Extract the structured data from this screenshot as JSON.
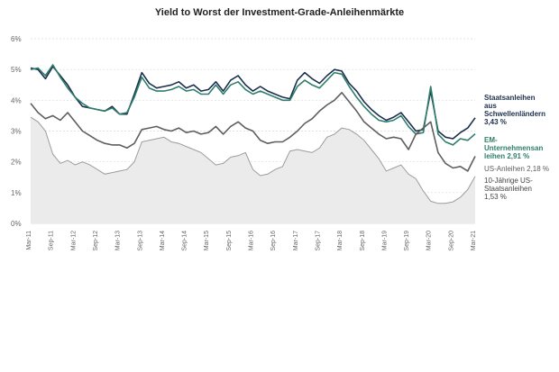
{
  "chart_data": {
    "type": "line",
    "title": "Yield to Worst der Investment-Grade-Anleihenmärkte",
    "ylim": [
      0,
      6
    ],
    "yticks": [
      "0%",
      "1%",
      "2%",
      "3%",
      "4%",
      "5%",
      "6%"
    ],
    "grid": true,
    "legend_placement": "right",
    "x_tick_labels": [
      "Mar-11",
      "Sep-11",
      "Mar-12",
      "Sep-12",
      "Mar-13",
      "Sep-13",
      "Mar-14",
      "Sep-14",
      "Mar-15",
      "Sep-15",
      "Mar-16",
      "Sep-16",
      "Mar-17",
      "Sep-17",
      "Mar-18",
      "Sep-18",
      "Mar-19",
      "Sep-19",
      "Mar-20",
      "Sep-20",
      "Mar-21"
    ],
    "series": [
      {
        "name": "Staatsanleihen aus Schwellenländern 3,43 %",
        "label_lines": [
          "Staatsanleihen",
          "aus",
          "Schwellenländern",
          "3,43 %"
        ],
        "color": "#1b2f4e",
        "style": "line",
        "values": [
          5.05,
          5.0,
          4.7,
          5.1,
          4.8,
          4.5,
          4.1,
          3.8,
          3.75,
          3.7,
          3.65,
          3.8,
          3.55,
          3.55,
          4.2,
          4.9,
          4.55,
          4.4,
          4.45,
          4.5,
          4.6,
          4.4,
          4.5,
          4.3,
          4.35,
          4.6,
          4.3,
          4.65,
          4.8,
          4.5,
          4.3,
          4.45,
          4.3,
          4.2,
          4.1,
          4.05,
          4.65,
          4.9,
          4.7,
          4.55,
          4.8,
          5.0,
          4.95,
          4.55,
          4.3,
          3.95,
          3.7,
          3.5,
          3.35,
          3.45,
          3.6,
          3.3,
          3.0,
          3.05,
          4.3,
          3.0,
          2.8,
          2.75,
          2.95,
          3.1,
          3.43
        ]
      },
      {
        "name": "EM-Unternehmensanleihen 2,91 %",
        "label_lines": [
          "EM-",
          "Unternehmensan",
          "leihen 2,91 %"
        ],
        "color": "#2f7e6b",
        "style": "line",
        "values": [
          5.0,
          5.05,
          4.8,
          5.15,
          4.75,
          4.4,
          4.1,
          3.9,
          3.75,
          3.7,
          3.65,
          3.75,
          3.55,
          3.6,
          4.1,
          4.75,
          4.4,
          4.3,
          4.3,
          4.35,
          4.45,
          4.3,
          4.35,
          4.2,
          4.2,
          4.5,
          4.2,
          4.5,
          4.6,
          4.35,
          4.2,
          4.3,
          4.2,
          4.1,
          4.0,
          4.0,
          4.45,
          4.65,
          4.5,
          4.4,
          4.65,
          4.9,
          4.85,
          4.45,
          4.1,
          3.8,
          3.55,
          3.35,
          3.3,
          3.35,
          3.5,
          3.15,
          2.9,
          2.95,
          4.45,
          2.9,
          2.65,
          2.55,
          2.75,
          2.7,
          2.91
        ]
      },
      {
        "name": "US-Anleihen 2,18 %",
        "label_lines": [
          "US-Anleihen 2,18 %"
        ],
        "color": "#5f5f5f",
        "style": "line",
        "values": [
          3.9,
          3.6,
          3.4,
          3.5,
          3.35,
          3.6,
          3.3,
          3.0,
          2.85,
          2.7,
          2.6,
          2.55,
          2.55,
          2.45,
          2.6,
          3.05,
          3.1,
          3.15,
          3.05,
          3.0,
          3.1,
          2.95,
          3.0,
          2.9,
          2.95,
          3.15,
          2.9,
          3.15,
          3.3,
          3.1,
          3.0,
          2.7,
          2.6,
          2.65,
          2.65,
          2.8,
          3.0,
          3.25,
          3.4,
          3.65,
          3.85,
          4.0,
          4.25,
          3.95,
          3.65,
          3.3,
          3.1,
          2.9,
          2.75,
          2.8,
          2.75,
          2.4,
          2.9,
          3.1,
          3.3,
          2.3,
          1.95,
          1.8,
          1.85,
          1.7,
          2.18
        ]
      },
      {
        "name": "10-Jährige US-Staatsanleihen 1,53 %",
        "label_lines": [
          "10-Jährige US-",
          "Staatsanleihen",
          "1,53 %"
        ],
        "color": "#9c9c9c",
        "fill": "#ebebeb",
        "style": "area",
        "values": [
          3.45,
          3.3,
          3.0,
          2.25,
          1.95,
          2.05,
          1.9,
          2.0,
          1.9,
          1.75,
          1.6,
          1.65,
          1.7,
          1.75,
          2.0,
          2.65,
          2.7,
          2.75,
          2.8,
          2.65,
          2.6,
          2.5,
          2.4,
          2.3,
          2.1,
          1.9,
          1.95,
          2.15,
          2.2,
          2.3,
          1.75,
          1.55,
          1.6,
          1.75,
          1.85,
          2.35,
          2.4,
          2.35,
          2.3,
          2.45,
          2.8,
          2.9,
          3.1,
          3.05,
          2.9,
          2.7,
          2.4,
          2.1,
          1.7,
          1.8,
          1.9,
          1.6,
          1.45,
          1.05,
          0.72,
          0.65,
          0.65,
          0.7,
          0.85,
          1.1,
          1.53
        ]
      }
    ]
  }
}
